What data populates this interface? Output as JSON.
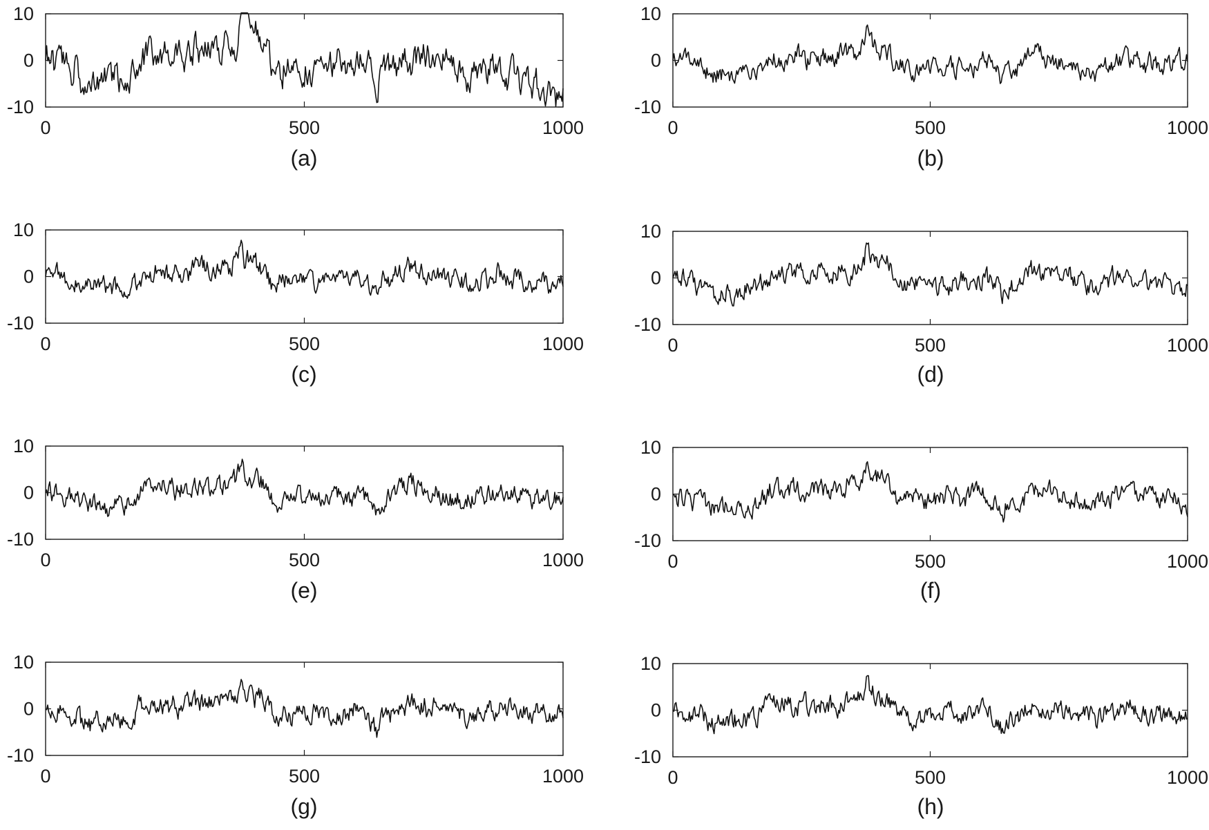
{
  "figure": {
    "panel_count": 8,
    "line_color": "#111111",
    "axis_color": "#1a1a1a"
  },
  "chart_data": [
    {
      "type": "line",
      "panel_label": "(a)",
      "xlim": [
        0,
        1000
      ],
      "ylim": [
        -10,
        10
      ],
      "xticks": [
        0,
        500,
        1000
      ],
      "yticks": [
        -10,
        0,
        10
      ],
      "grid": false,
      "signal": {
        "seed": 1,
        "amplitude": 1.45,
        "drift": [
          [
            0,
            0
          ],
          [
            60,
            -2
          ],
          [
            70,
            -6
          ],
          [
            160,
            -3
          ],
          [
            190,
            2
          ],
          [
            260,
            1
          ],
          [
            300,
            2
          ],
          [
            360,
            4
          ],
          [
            385,
            8
          ],
          [
            420,
            5
          ],
          [
            440,
            -2
          ],
          [
            500,
            -1
          ],
          [
            560,
            -1
          ],
          [
            600,
            0
          ],
          [
            640,
            -4
          ],
          [
            700,
            0
          ],
          [
            760,
            0
          ],
          [
            820,
            -4
          ],
          [
            880,
            -2
          ],
          [
            940,
            -5
          ],
          [
            1000,
            -8
          ]
        ],
        "spikes": [
          [
            378,
            7
          ],
          [
            385,
            6
          ],
          [
            640,
            -4
          ]
        ],
        "peak": 10.2,
        "trough": -10
      }
    },
    {
      "type": "line",
      "panel_label": "(b)",
      "xlim": [
        0,
        1000
      ],
      "ylim": [
        -10,
        10
      ],
      "xticks": [
        0,
        500,
        1000
      ],
      "yticks": [
        -10,
        0,
        10
      ],
      "grid": false,
      "signal": {
        "seed": 2,
        "amplitude": 1.0,
        "drift": [
          [
            0,
            0
          ],
          [
            60,
            -1
          ],
          [
            70,
            -3
          ],
          [
            160,
            -2
          ],
          [
            190,
            1
          ],
          [
            260,
            0.5
          ],
          [
            300,
            1
          ],
          [
            360,
            2
          ],
          [
            380,
            4
          ],
          [
            420,
            2
          ],
          [
            440,
            -2
          ],
          [
            500,
            -1
          ],
          [
            560,
            -1
          ],
          [
            600,
            0
          ],
          [
            640,
            -3
          ],
          [
            700,
            1.5
          ],
          [
            760,
            0
          ],
          [
            820,
            -2
          ],
          [
            880,
            0.5
          ],
          [
            940,
            -1
          ],
          [
            1000,
            0
          ]
        ],
        "spikes": [
          [
            378,
            4
          ],
          [
            640,
            -2
          ]
        ],
        "peak": 7.6,
        "trough": -6
      }
    },
    {
      "type": "line",
      "panel_label": "(c)",
      "xlim": [
        0,
        1000
      ],
      "ylim": [
        -10,
        10
      ],
      "xticks": [
        0,
        500,
        1000
      ],
      "yticks": [
        -10,
        0,
        10
      ],
      "grid": false,
      "signal": {
        "seed": 3,
        "amplitude": 1.0,
        "drift": [
          [
            0,
            0
          ],
          [
            60,
            -1
          ],
          [
            70,
            -3
          ],
          [
            160,
            -2
          ],
          [
            190,
            1
          ],
          [
            260,
            0.5
          ],
          [
            300,
            1
          ],
          [
            360,
            2
          ],
          [
            380,
            4
          ],
          [
            420,
            2
          ],
          [
            440,
            -2
          ],
          [
            500,
            -1
          ],
          [
            560,
            -1
          ],
          [
            600,
            0
          ],
          [
            640,
            -3
          ],
          [
            700,
            1.5
          ],
          [
            760,
            0
          ],
          [
            820,
            -2
          ],
          [
            880,
            0.5
          ],
          [
            940,
            -1
          ],
          [
            1000,
            -1
          ]
        ],
        "spikes": [
          [
            378,
            4
          ],
          [
            640,
            -2
          ]
        ],
        "peak": 7.8,
        "trough": -6.5
      }
    },
    {
      "type": "line",
      "panel_label": "(d)",
      "xlim": [
        0,
        1000
      ],
      "ylim": [
        -10,
        10
      ],
      "xticks": [
        0,
        500,
        1000
      ],
      "yticks": [
        -10,
        0,
        10
      ],
      "grid": false,
      "signal": {
        "seed": 4,
        "amplitude": 1.0,
        "drift": [
          [
            0,
            0
          ],
          [
            60,
            -1
          ],
          [
            70,
            -3
          ],
          [
            160,
            -2
          ],
          [
            190,
            1
          ],
          [
            260,
            0.5
          ],
          [
            300,
            1
          ],
          [
            360,
            2
          ],
          [
            380,
            4
          ],
          [
            420,
            2
          ],
          [
            440,
            -2
          ],
          [
            500,
            -1
          ],
          [
            560,
            -1
          ],
          [
            600,
            0
          ],
          [
            640,
            -3
          ],
          [
            700,
            1.5
          ],
          [
            760,
            0
          ],
          [
            820,
            -2
          ],
          [
            880,
            0.5
          ],
          [
            940,
            -1
          ],
          [
            1000,
            -1.5
          ]
        ],
        "spikes": [
          [
            378,
            4
          ],
          [
            640,
            -2
          ]
        ],
        "peak": 7.5,
        "trough": -6
      }
    },
    {
      "type": "line",
      "panel_label": "(e)",
      "xlim": [
        0,
        1000
      ],
      "ylim": [
        -10,
        10
      ],
      "xticks": [
        0,
        500,
        1000
      ],
      "yticks": [
        -10,
        0,
        10
      ],
      "grid": false,
      "signal": {
        "seed": 5,
        "amplitude": 1.0,
        "drift": [
          [
            0,
            0
          ],
          [
            60,
            -1
          ],
          [
            70,
            -3
          ],
          [
            160,
            -2
          ],
          [
            190,
            1
          ],
          [
            260,
            0.5
          ],
          [
            300,
            1
          ],
          [
            360,
            2
          ],
          [
            380,
            4
          ],
          [
            420,
            2
          ],
          [
            440,
            -2
          ],
          [
            500,
            -1
          ],
          [
            560,
            -1
          ],
          [
            600,
            0
          ],
          [
            640,
            -3
          ],
          [
            700,
            1.5
          ],
          [
            760,
            0
          ],
          [
            820,
            -2
          ],
          [
            880,
            0.5
          ],
          [
            940,
            -1
          ],
          [
            1000,
            -1.5
          ]
        ],
        "spikes": [
          [
            378,
            4
          ],
          [
            640,
            -2
          ]
        ],
        "peak": 7.2,
        "trough": -6.5
      }
    },
    {
      "type": "line",
      "panel_label": "(f)",
      "xlim": [
        0,
        1000
      ],
      "ylim": [
        -10,
        10
      ],
      "xticks": [
        0,
        500,
        1000
      ],
      "yticks": [
        -10,
        0,
        10
      ],
      "grid": false,
      "signal": {
        "seed": 6,
        "amplitude": 1.0,
        "drift": [
          [
            0,
            0
          ],
          [
            60,
            -1
          ],
          [
            70,
            -3
          ],
          [
            160,
            -2
          ],
          [
            190,
            1
          ],
          [
            260,
            0.5
          ],
          [
            300,
            1
          ],
          [
            360,
            2
          ],
          [
            380,
            4
          ],
          [
            420,
            2
          ],
          [
            440,
            -2
          ],
          [
            500,
            -1
          ],
          [
            560,
            -1
          ],
          [
            600,
            0
          ],
          [
            640,
            -3
          ],
          [
            700,
            1.5
          ],
          [
            760,
            0
          ],
          [
            820,
            -2
          ],
          [
            880,
            0.5
          ],
          [
            940,
            -1
          ],
          [
            1000,
            -1.5
          ]
        ],
        "spikes": [
          [
            378,
            4
          ],
          [
            640,
            -2
          ]
        ],
        "peak": 7.5,
        "trough": -6
      }
    },
    {
      "type": "line",
      "panel_label": "(g)",
      "xlim": [
        0,
        1000
      ],
      "ylim": [
        -10,
        10
      ],
      "xticks": [
        0,
        500,
        1000
      ],
      "yticks": [
        -10,
        0,
        10
      ],
      "grid": false,
      "signal": {
        "seed": 7,
        "amplitude": 1.0,
        "drift": [
          [
            0,
            0
          ],
          [
            60,
            -1
          ],
          [
            70,
            -3
          ],
          [
            160,
            -2
          ],
          [
            190,
            1
          ],
          [
            260,
            0.5
          ],
          [
            300,
            1
          ],
          [
            360,
            2
          ],
          [
            380,
            4
          ],
          [
            420,
            2
          ],
          [
            440,
            -2
          ],
          [
            500,
            -1
          ],
          [
            560,
            -1
          ],
          [
            600,
            0
          ],
          [
            640,
            -3
          ],
          [
            700,
            1.5
          ],
          [
            760,
            0
          ],
          [
            820,
            -2
          ],
          [
            880,
            0.5
          ],
          [
            940,
            -1
          ],
          [
            1000,
            -1.5
          ]
        ],
        "spikes": [
          [
            378,
            4
          ],
          [
            640,
            -2
          ]
        ],
        "peak": 7.2,
        "trough": -6.5
      }
    },
    {
      "type": "line",
      "panel_label": "(h)",
      "xlim": [
        0,
        1000
      ],
      "ylim": [
        -10,
        10
      ],
      "xticks": [
        0,
        500,
        1000
      ],
      "yticks": [
        -10,
        0,
        10
      ],
      "grid": false,
      "signal": {
        "seed": 8,
        "amplitude": 1.0,
        "drift": [
          [
            0,
            0
          ],
          [
            60,
            -1
          ],
          [
            70,
            -3
          ],
          [
            160,
            -2
          ],
          [
            190,
            1
          ],
          [
            260,
            0.5
          ],
          [
            300,
            1
          ],
          [
            360,
            2
          ],
          [
            380,
            4
          ],
          [
            420,
            2
          ],
          [
            440,
            -2
          ],
          [
            500,
            -1
          ],
          [
            560,
            -1
          ],
          [
            600,
            0
          ],
          [
            640,
            -3
          ],
          [
            700,
            1.5
          ],
          [
            760,
            0
          ],
          [
            820,
            -2
          ],
          [
            880,
            0.5
          ],
          [
            940,
            -1
          ],
          [
            1000,
            -1.5
          ]
        ],
        "spikes": [
          [
            378,
            4
          ],
          [
            640,
            -2
          ]
        ],
        "peak": 7.4,
        "trough": -6
      }
    }
  ]
}
